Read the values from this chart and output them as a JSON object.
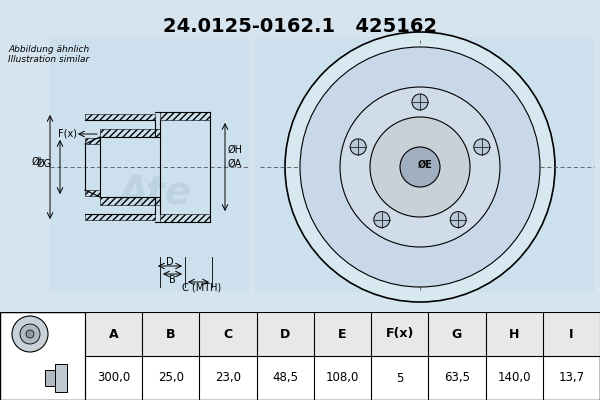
{
  "title_part": "24.0125-0162.1",
  "title_num": "425162",
  "subtitle1": "Abbildung ähnlich",
  "subtitle2": "Illustration similar",
  "table_headers": [
    "A",
    "B",
    "C",
    "D",
    "E",
    "F(x)",
    "G",
    "H",
    "I"
  ],
  "table_values": [
    "300,0",
    "25,0",
    "23,0",
    "48,5",
    "108,0",
    "5",
    "63,5",
    "140,0",
    "13,7"
  ],
  "bg_color": "#d6e4f0",
  "diagram_bg": "#ccdde8",
  "white": "#ffffff",
  "black": "#000000",
  "gray_light": "#e8e8e8",
  "table_header_bg": "#e0e0e0"
}
